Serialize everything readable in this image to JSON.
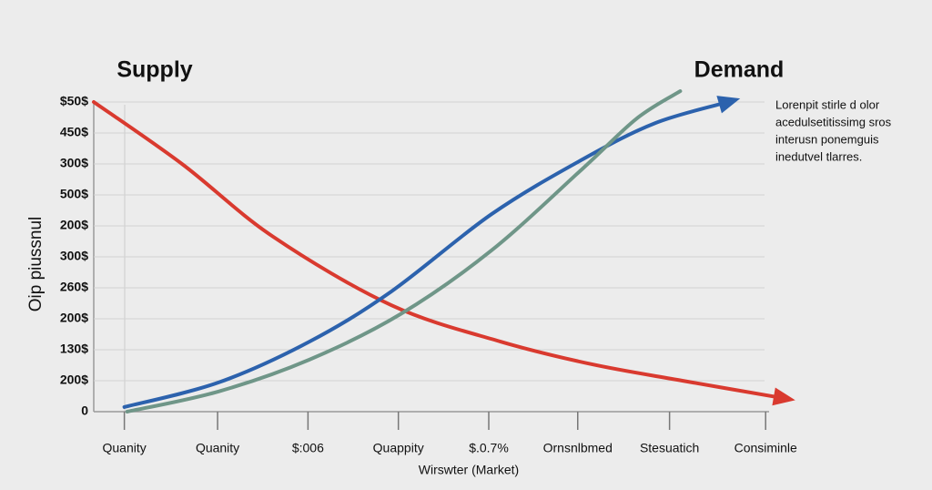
{
  "chart_data": {
    "type": "line",
    "y_axis_label": "Oip piussnul",
    "x_axis_label": "Wirswter (Market)",
    "annotation": [
      "Lorenpit stirle d olor",
      "acedulsetitissimg sros",
      "interusn ponemguis",
      "inedutvel tlarres."
    ],
    "xlim": [
      0,
      100
    ],
    "xticks": [
      {
        "value": 4.3,
        "label": "Quanity"
      },
      {
        "value": 17.4,
        "label": "Quanity"
      },
      {
        "value": 30.1,
        "label": "$:006"
      },
      {
        "value": 42.8,
        "label": "Quappity"
      },
      {
        "value": 55.5,
        "label": "$.0.7%"
      },
      {
        "value": 68.0,
        "label": "Ornsnlbmed"
      },
      {
        "value": 80.9,
        "label": "Stesuatich"
      },
      {
        "value": 94.4,
        "label": "Consiminle"
      }
    ],
    "ylim": [
      0,
      10
    ],
    "yticks": [
      0,
      {
        "value": 1,
        "label": "200$"
      },
      {
        "value": 2,
        "label": "130$"
      },
      {
        "value": 3,
        "label": "200$"
      },
      {
        "value": 4,
        "label": "260$"
      },
      {
        "value": 5,
        "label": "300$"
      },
      {
        "value": 6,
        "label": "200$"
      },
      {
        "value": 7,
        "label": "500$"
      },
      {
        "value": 8,
        "label": "300$"
      },
      {
        "value": 9,
        "label": "450$"
      },
      {
        "value": 10,
        "label": "$50$"
      }
    ],
    "grid": true,
    "series": [
      {
        "name": "Supply",
        "color": "#d93a2f",
        "x": [
          0,
          12.4,
          25.2,
          41.8,
          57.2,
          70.0,
          82.7,
          96.8
        ],
        "values": [
          10,
          8.0,
          5.65,
          3.44,
          2.26,
          1.53,
          1.0,
          0.44
        ]
      },
      {
        "name": "Demand",
        "color": "#2c62ad",
        "x": [
          4.3,
          17.5,
          30.3,
          41.8,
          55.9,
          68.7,
          78.9,
          89.1
        ],
        "values": [
          0.15,
          0.94,
          2.26,
          3.88,
          6.38,
          8.15,
          9.32,
          10.0
        ]
      },
      {
        "color": "#6f9688",
        "x": [
          4.7,
          17.5,
          30.3,
          43.1,
          55.9,
          68.7,
          76.3,
          82.4
        ],
        "values": [
          0,
          0.65,
          1.68,
          3.15,
          5.21,
          7.85,
          9.47,
          10.35
        ]
      }
    ]
  }
}
